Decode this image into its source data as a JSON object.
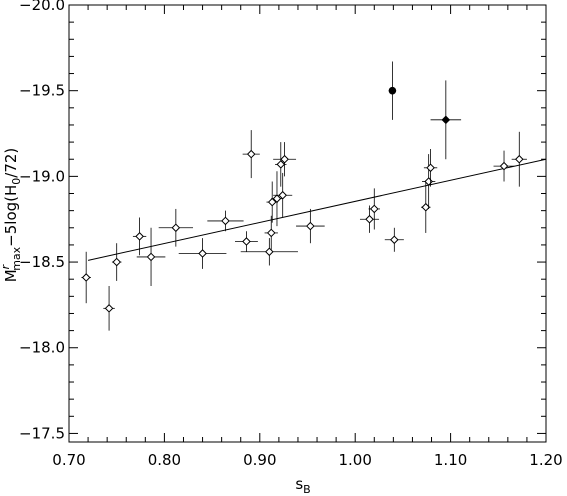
{
  "chart_data": {
    "type": "scatter",
    "xlabel": "s_B",
    "xlabel_main": "s",
    "xlabel_sub": "B",
    "ylabel": "M^r_max−5log(H0/72)",
    "ylabel_parts": {
      "m": "M",
      "sup": "r",
      "sub": "max",
      "rest1": "−5log(H",
      "sub0": "0",
      "rest2": "/72)"
    },
    "xlim": [
      0.7,
      1.2
    ],
    "ylim": [
      -17.45,
      -20.0
    ],
    "y_inverted": true,
    "grid": false,
    "x_ticks": [
      "0.70",
      "0.80",
      "0.90",
      "1.00",
      "1.10",
      "1.20"
    ],
    "y_ticks": [
      "−20.0",
      "−19.5",
      "−19.0",
      "−18.5",
      "−18.0",
      "−17.5"
    ],
    "series": [
      {
        "marker": "open-diamond",
        "points": [
          {
            "x": 0.718,
            "y": -18.41,
            "xerr": 0.005,
            "yerr": 0.15
          },
          {
            "x": 0.742,
            "y": -18.23,
            "xerr": 0.006,
            "yerr": 0.13
          },
          {
            "x": 0.75,
            "y": -18.5,
            "xerr": 0.005,
            "yerr": 0.11
          },
          {
            "x": 0.774,
            "y": -18.65,
            "xerr": 0.007,
            "yerr": 0.11
          },
          {
            "x": 0.786,
            "y": -18.53,
            "xerr": 0.015,
            "yerr": 0.17
          },
          {
            "x": 0.812,
            "y": -18.7,
            "xerr": 0.018,
            "yerr": 0.11
          },
          {
            "x": 0.84,
            "y": -18.55,
            "xerr": 0.025,
            "yerr": 0.09
          },
          {
            "x": 0.864,
            "y": -18.74,
            "xerr": 0.019,
            "yerr": 0.06
          },
          {
            "x": 0.886,
            "y": -18.62,
            "xerr": 0.012,
            "yerr": 0.06
          },
          {
            "x": 0.891,
            "y": -19.13,
            "xerr": 0.009,
            "yerr": 0.14
          },
          {
            "x": 0.91,
            "y": -18.56,
            "xerr": 0.03,
            "yerr": 0.08
          },
          {
            "x": 0.912,
            "y": -18.67,
            "xerr": 0.007,
            "yerr": 0.1
          },
          {
            "x": 0.913,
            "y": -18.85,
            "xerr": 0.006,
            "yerr": 0.12
          },
          {
            "x": 0.918,
            "y": -18.87,
            "xerr": 0.006,
            "yerr": 0.16
          },
          {
            "x": 0.922,
            "y": -19.07,
            "xerr": 0.006,
            "yerr": 0.13
          },
          {
            "x": 0.924,
            "y": -18.89,
            "xerr": 0.01,
            "yerr": 0.13
          },
          {
            "x": 0.926,
            "y": -19.1,
            "xerr": 0.012,
            "yerr": 0.1
          },
          {
            "x": 0.953,
            "y": -18.71,
            "xerr": 0.015,
            "yerr": 0.1
          },
          {
            "x": 1.015,
            "y": -18.75,
            "xerr": 0.01,
            "yerr": 0.08
          },
          {
            "x": 1.02,
            "y": -18.81,
            "xerr": 0.006,
            "yerr": 0.12
          },
          {
            "x": 1.041,
            "y": -18.63,
            "xerr": 0.01,
            "yerr": 0.07
          },
          {
            "x": 1.074,
            "y": -18.82,
            "xerr": 0.005,
            "yerr": 0.15
          },
          {
            "x": 1.077,
            "y": -18.97,
            "xerr": 0.007,
            "yerr": 0.16
          },
          {
            "x": 1.079,
            "y": -19.05,
            "xerr": 0.007,
            "yerr": 0.11
          },
          {
            "x": 1.156,
            "y": -19.06,
            "xerr": 0.011,
            "yerr": 0.09
          },
          {
            "x": 1.172,
            "y": -19.1,
            "xerr": 0.008,
            "yerr": 0.16
          }
        ]
      },
      {
        "marker": "filled-circle",
        "points": [
          {
            "x": 1.039,
            "y": -19.5,
            "xerr": 0.0,
            "yerr": 0.17
          }
        ]
      },
      {
        "marker": "filled-diamond",
        "points": [
          {
            "x": 1.095,
            "y": -19.33,
            "xerr": 0.016,
            "yerr": 0.23
          }
        ]
      }
    ],
    "fit_line": {
      "x": [
        0.72,
        1.2
      ],
      "y": [
        -18.51,
        -19.1
      ]
    }
  }
}
